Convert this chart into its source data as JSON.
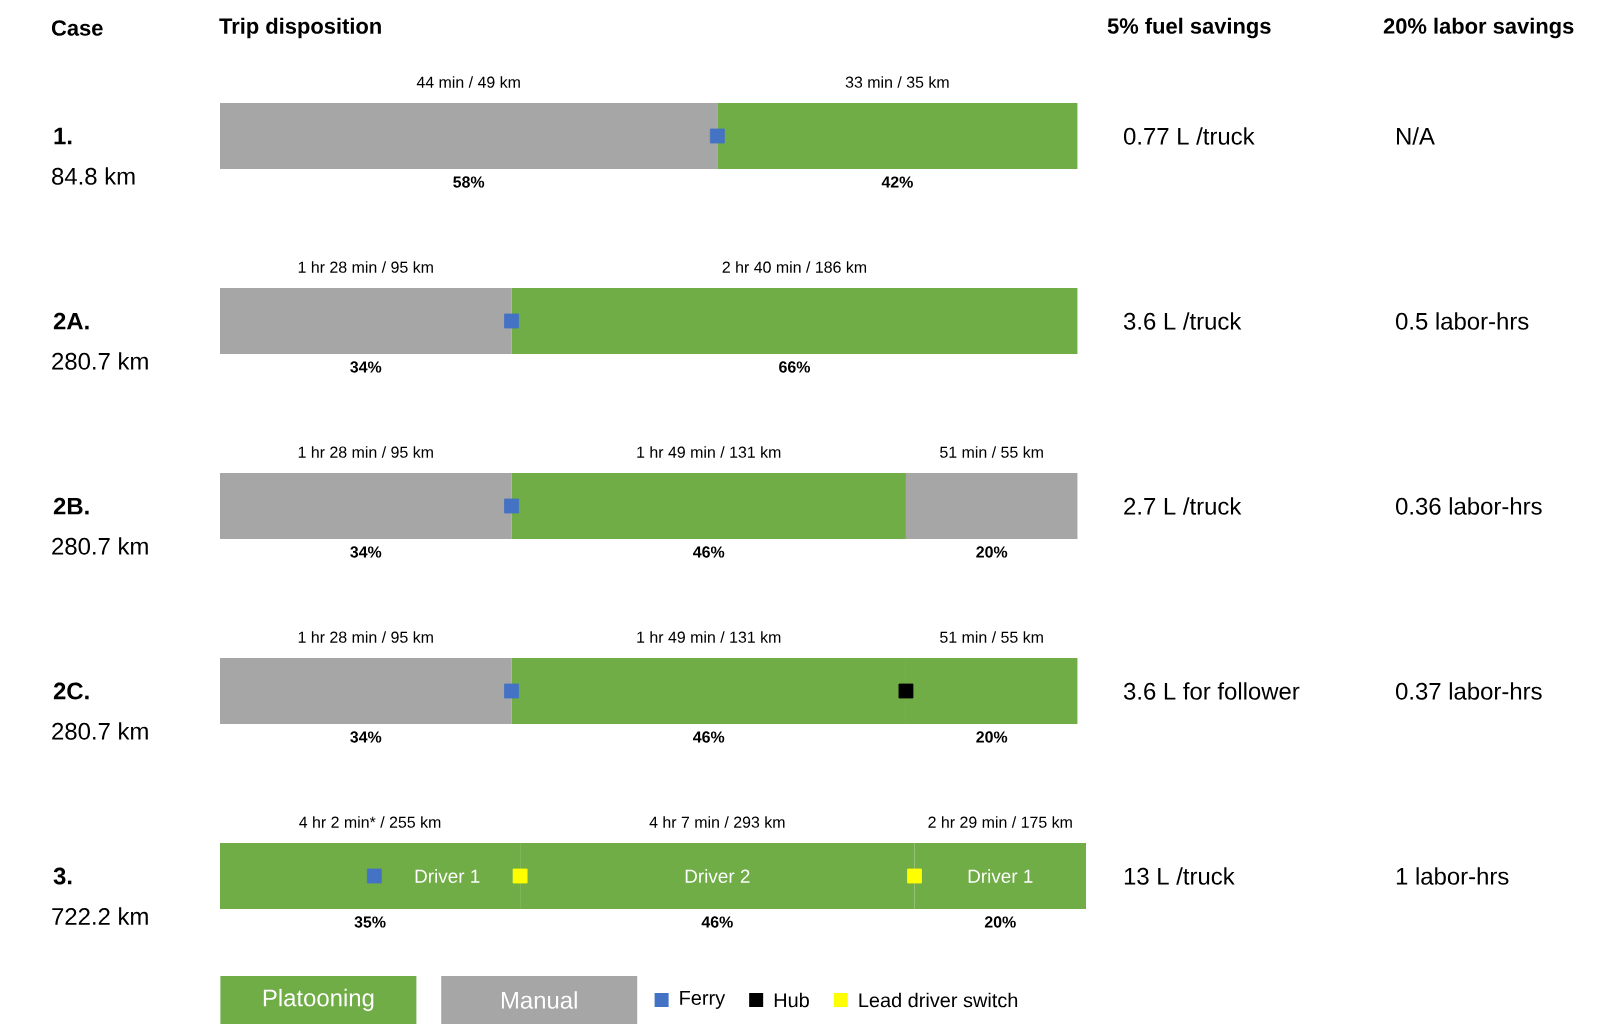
{
  "chart_data": {
    "type": "bar",
    "orientation": "horizontal",
    "stacked": true,
    "xlabel": "Trip disposition",
    "ylabel": "Case",
    "legend": "bottom",
    "categories": [
      "1.",
      "2A.",
      "2B.",
      "2C.",
      "3."
    ],
    "series": [
      {
        "name": "Manual",
        "color": "#a6a6a6",
        "values": [
          58,
          34,
          34,
          34,
          null
        ],
        "value_labels": [
          "58%",
          "34%",
          "34%",
          "34%",
          null
        ]
      },
      {
        "name": "Platooning",
        "color": "#70ad47",
        "values": [
          42,
          66,
          46,
          46,
          35
        ],
        "value_labels": [
          "42%",
          "66%",
          "46%",
          "46%",
          "35%"
        ]
      },
      {
        "color": "#a6a6a6",
        "values": [
          null,
          null,
          20,
          null,
          null
        ],
        "value_labels": [
          null,
          null,
          "20%",
          null,
          null
        ]
      },
      {
        "color": "#70ad47",
        "values": [
          null,
          null,
          null,
          20,
          46
        ],
        "value_labels": [
          null,
          null,
          null,
          "20%",
          "46%"
        ]
      },
      {
        "color": "#70ad47",
        "values": [
          null,
          null,
          null,
          null,
          20
        ],
        "value_labels": [
          null,
          null,
          null,
          null,
          "20%"
        ]
      },
      {
        "type": "scatter",
        "name": "Ferry",
        "color": "#4472c4",
        "values": [
          58,
          34,
          34,
          34,
          18
        ]
      },
      {
        "type": "scatter",
        "name": "Hub",
        "color": "#000000",
        "values": [
          null,
          null,
          null,
          80,
          null
        ]
      },
      {
        "type": "scatter",
        "name": "Lead driver switch",
        "color": "#ffff00",
        "values": [
          null,
          null,
          null,
          null,
          35
        ]
      },
      {
        "type": "scatter",
        "color": "#ffff00",
        "values": [
          null,
          null,
          null,
          null,
          81
        ]
      }
    ],
    "annotations": [
      "5% fuel savings",
      "20% labor savings",
      "84.8 km",
      "280.7 km",
      "280.7 km",
      "280.7 km",
      "722.2 km",
      "0.77 L /truck",
      "3.6 L /truck",
      "2.7 L /truck",
      "3.6 L for follower",
      "13 L /truck",
      "N/A",
      "0.5 labor-hrs",
      "0.36 labor-hrs",
      "0.37 labor-hrs",
      "1 labor-hrs",
      "44 min / 49 km",
      "33 min / 35 km",
      "1 hr 28 min / 95 km",
      "2 hr 40 min / 186 km",
      "1 hr 28 min / 95 km",
      "1 hr 49 min / 131 km",
      "51 min / 55 km",
      "1 hr 28 min / 95 km",
      "1 hr 49 min / 131 km",
      "51 min / 55 km",
      "4 hr 2 min* / 255 km",
      "4 hr 7 min / 293 km",
      "2 hr 29 min / 175 km",
      "Driver 1",
      "Driver 2",
      "Driver 1"
    ]
  }
}
